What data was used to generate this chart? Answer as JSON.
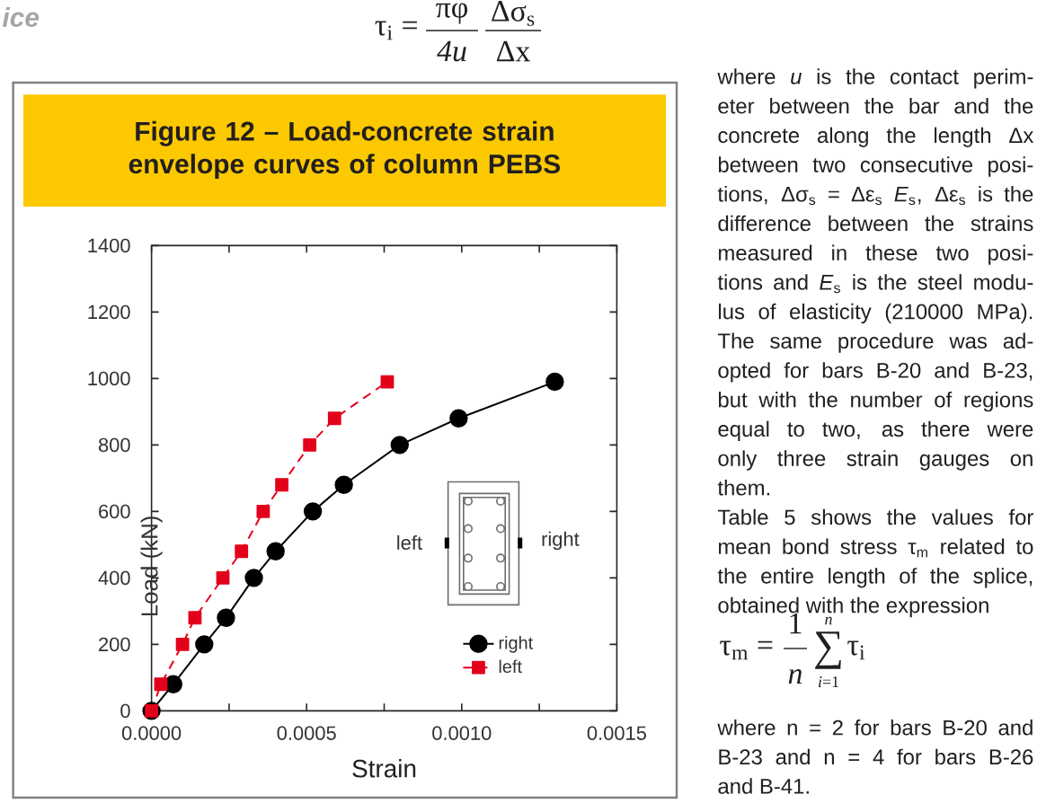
{
  "chart_data": {
    "type": "line",
    "title": "Figure 12 – Load-concrete strain envelope curves of column PEBS",
    "xlabel": "Strain",
    "ylabel": "Load (kN)",
    "series": [
      {
        "name": "right",
        "color": "#000000",
        "marker": "circle",
        "line_style": "solid",
        "x": [
          0,
          7e-05,
          0.00017,
          0.00024,
          0.00033,
          0.0004,
          0.00052,
          0.00062,
          0.0008,
          0.00099,
          0.0013
        ],
        "values": [
          0,
          80,
          200,
          280,
          400,
          480,
          600,
          680,
          800,
          880,
          990
        ]
      },
      {
        "name": "left",
        "color": "#e3001b",
        "marker": "square",
        "line_style": "dashed",
        "x": [
          0,
          3e-05,
          0.0001,
          0.00014,
          0.00023,
          0.00029,
          0.00036,
          0.00042,
          0.00051,
          0.00059,
          0.00076
        ],
        "values": [
          0,
          80,
          200,
          280,
          400,
          480,
          600,
          680,
          800,
          880,
          990
        ]
      }
    ],
    "xlim": [
      0,
      0.0015
    ],
    "ylim": [
      0,
      1400
    ],
    "xticks": [
      {
        "value": 0,
        "label": "0.0000"
      },
      {
        "value": 0.00025,
        "label": null
      },
      {
        "value": 0.0005,
        "label": "0.0005"
      },
      {
        "value": 0.00075,
        "label": null
      },
      {
        "value": 0.001,
        "label": "0.0010"
      },
      {
        "value": 0.00125,
        "label": null
      },
      {
        "value": 0.0015,
        "label": "0.0015"
      }
    ],
    "yticks": [
      0,
      200,
      400,
      600,
      800,
      1000,
      1200,
      1400
    ],
    "legend": "bottom right",
    "annotations": [
      "ice",
      "τ$_{i}$ =",
      "πφ",
      "4u",
      "Δσ$_{s}$",
      "Δx",
      "where *u* is the contact perim-",
      "eter between the bar and the",
      "concrete along the length Δx",
      "between two consecutive posi-",
      "tions, Δσ$_{s}$ = Δε$_{s}$ *E*$_{s}$, Δε$_{s}$ is the",
      "difference between the strains",
      "measured in these two posi-",
      "tions and *E*$_{s}$ is the steel modu-",
      "lus of elasticity (210000 MPa).",
      "The same procedure was ad-",
      "opted for bars B-20 and B-23,",
      "but with the number of regions",
      "equal to two, as there were",
      "only three strain gauges on",
      "them.",
      "Table 5 shows the values for",
      "mean bond stress τ$_{m}$ related to",
      "the entire length of the splice,",
      "obtained with the expression",
      "τ$_{m}$ =",
      "1",
      "*n*",
      "*n*",
      "∑",
      "*i*=1",
      "τ$_{i}$",
      "where n = 2 for bars B-20 and",
      "B-23 and n = 4 for bars B-26",
      "and B-41.",
      "left",
      "right"
    ]
  }
}
